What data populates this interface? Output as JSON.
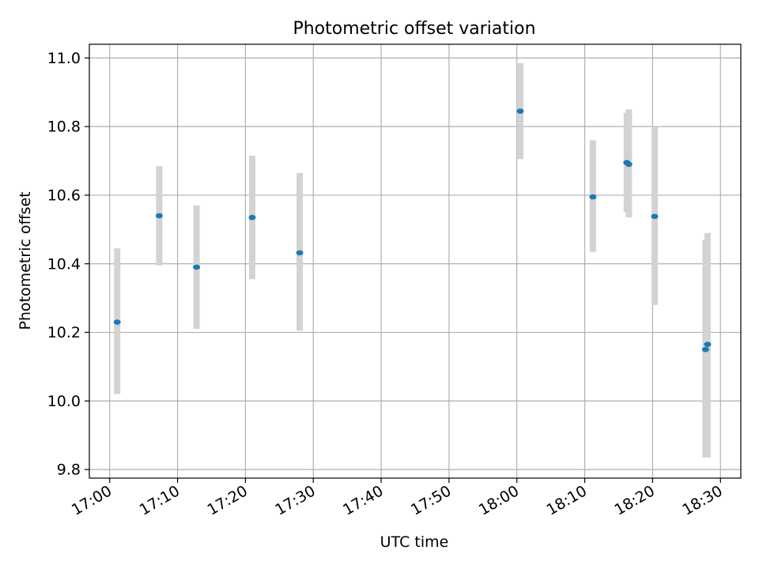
{
  "chart_data": {
    "type": "scatter",
    "title": "Photometric offset variation",
    "xlabel": "UTC time",
    "ylabel": "Photometric offset",
    "x_unit": "minutes after 17:00 UTC",
    "xlim": [
      -3,
      93
    ],
    "ylim": [
      9.775,
      11.04
    ],
    "grid": true,
    "x_ticks": [
      {
        "value": 0,
        "label": "17:00"
      },
      {
        "value": 10,
        "label": "17:10"
      },
      {
        "value": 20,
        "label": "17:20"
      },
      {
        "value": 30,
        "label": "17:30"
      },
      {
        "value": 40,
        "label": "17:40"
      },
      {
        "value": 50,
        "label": "17:50"
      },
      {
        "value": 60,
        "label": "18:00"
      },
      {
        "value": 70,
        "label": "18:10"
      },
      {
        "value": 80,
        "label": "18:20"
      },
      {
        "value": 90,
        "label": "18:30"
      }
    ],
    "y_ticks": [
      {
        "value": 9.8,
        "label": "9.8"
      },
      {
        "value": 10.0,
        "label": "10.0"
      },
      {
        "value": 10.2,
        "label": "10.2"
      },
      {
        "value": 10.4,
        "label": "10.4"
      },
      {
        "value": 10.6,
        "label": "10.6"
      },
      {
        "value": 10.8,
        "label": "10.8"
      },
      {
        "value": 11.0,
        "label": "11.0"
      }
    ],
    "points": [
      {
        "x": 1.1,
        "y": 10.23,
        "err_low": 10.02,
        "err_high": 10.445
      },
      {
        "x": 7.3,
        "y": 10.54,
        "err_low": 10.395,
        "err_high": 10.685
      },
      {
        "x": 12.8,
        "y": 10.39,
        "err_low": 10.21,
        "err_high": 10.57
      },
      {
        "x": 21.0,
        "y": 10.535,
        "err_low": 10.355,
        "err_high": 10.715
      },
      {
        "x": 28.0,
        "y": 10.432,
        "err_low": 10.205,
        "err_high": 10.665
      },
      {
        "x": 60.5,
        "y": 10.845,
        "err_low": 10.705,
        "err_high": 10.985
      },
      {
        "x": 71.2,
        "y": 10.595,
        "err_low": 10.435,
        "err_high": 10.76
      },
      {
        "x": 76.2,
        "y": 10.695,
        "err_low": 10.55,
        "err_high": 10.84
      },
      {
        "x": 76.5,
        "y": 10.69,
        "err_low": 10.535,
        "err_high": 10.85
      },
      {
        "x": 80.3,
        "y": 10.538,
        "err_low": 10.28,
        "err_high": 10.8
      },
      {
        "x": 87.8,
        "y": 10.15,
        "err_low": 9.835,
        "err_high": 10.47
      },
      {
        "x": 88.1,
        "y": 10.165,
        "err_low": 9.835,
        "err_high": 10.49
      }
    ],
    "colors": {
      "point": "#1f77b4",
      "errorbar": "#d3d3d3",
      "grid": "#b0b0b0",
      "axis": "#000000"
    }
  }
}
